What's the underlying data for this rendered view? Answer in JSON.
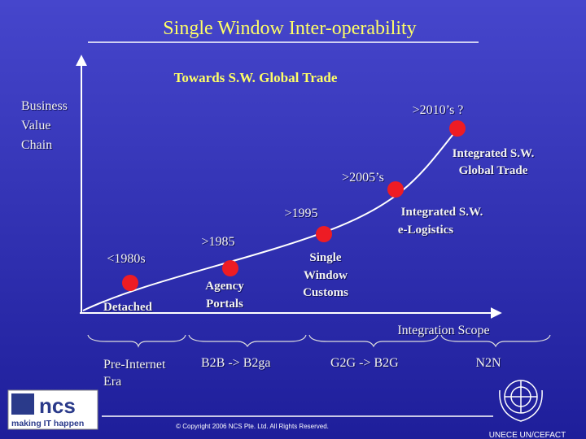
{
  "header": {
    "title": "Single Window Inter-operability",
    "subtitle": "Towards S.W. Global Trade"
  },
  "axes": {
    "y_label": [
      "Business",
      "Value",
      "Chain"
    ],
    "x_label": "Integration Scope"
  },
  "milestones": [
    {
      "period": "<1980s",
      "label": [
        "Detached"
      ]
    },
    {
      "period": ">1985",
      "label": [
        "Agency",
        "Portals"
      ]
    },
    {
      "period": ">1995",
      "label": [
        "Single",
        "Window",
        "Customs"
      ]
    },
    {
      "period": ">2005’s",
      "label": [
        "Integrated S.W.",
        "e-Logistics"
      ]
    },
    {
      "period": ">2010’s ?",
      "label": [
        "Integrated S.W.",
        "Global Trade"
      ]
    }
  ],
  "eras": [
    [
      "Pre-Internet",
      "Era"
    ],
    [
      "B2B -> B2ga"
    ],
    [
      "G2G -> B2G"
    ],
    [
      "N2N"
    ]
  ],
  "footer": {
    "copyright": "© Copyright 2006 NCS Pte. Ltd. All Rights Reserved.",
    "logo": "ncs",
    "tagline": "making IT happen",
    "organization": "UNECE UN/CEFACT"
  }
}
